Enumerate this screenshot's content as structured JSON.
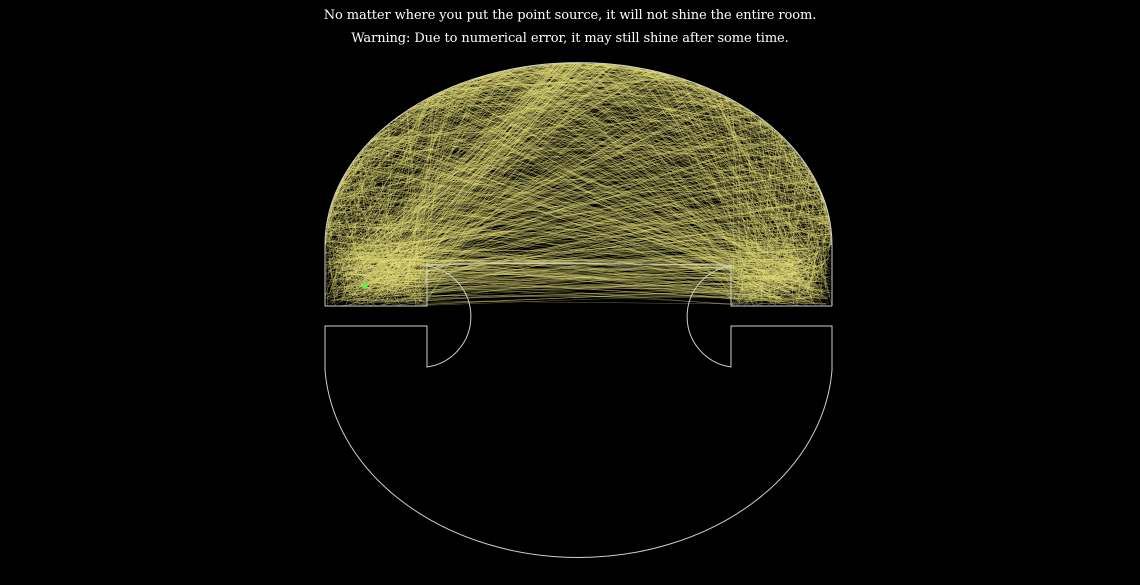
{
  "captions": {
    "line1": "No matter where you put the point source, it will not shine the entire room.",
    "line2": "Warning: Due to numerical error, it may still shine after some time."
  },
  "colors": {
    "background": "#000000",
    "room_outline": "#cfcfcf",
    "light_rays": "#e8e27a",
    "point_source": "#44ff44",
    "text": "#ffffff"
  },
  "icons": {
    "point_source": "point-source-icon"
  }
}
